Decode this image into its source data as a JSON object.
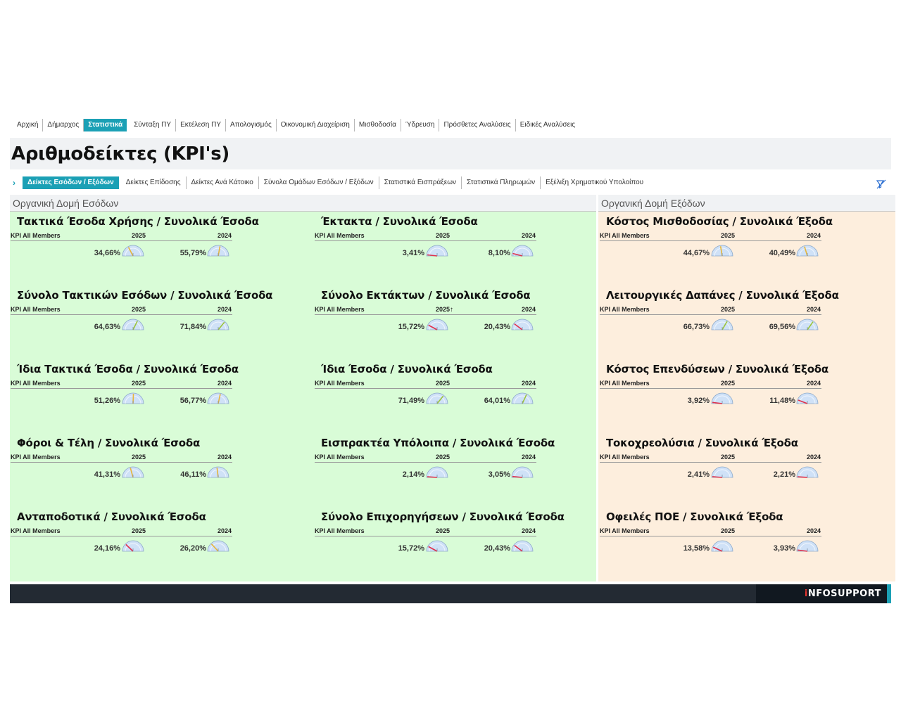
{
  "topnav": [
    {
      "label": "Αρχική",
      "active": false
    },
    {
      "label": "Δήμαρχος",
      "active": false
    },
    {
      "label": "Στατιστικά",
      "active": true
    },
    {
      "label": "Σύνταξη ΠΥ",
      "active": false
    },
    {
      "label": "Εκτέλεση ΠΥ",
      "active": false
    },
    {
      "label": "Απολογισμός",
      "active": false
    },
    {
      "label": "Οικονομική Διαχείριση",
      "active": false
    },
    {
      "label": "Μισθοδοσία",
      "active": false
    },
    {
      "label": "Ύδρευση",
      "active": false
    },
    {
      "label": "Πρόσθετες Αναλύσεις",
      "active": false
    },
    {
      "label": "Ειδικές Αναλύσεις",
      "active": false
    }
  ],
  "page_title": "Αριθμοδείκτες (KPI's)",
  "subnav": [
    {
      "label": "Δείκτες Εσόδων / Εξόδων",
      "active": true
    },
    {
      "label": "Δείκτες Επίδοσης",
      "active": false
    },
    {
      "label": "Δείκτες Ανά Κάτοικο",
      "active": false
    },
    {
      "label": "Σύνολα Ομάδων Εσόδων / Εξόδων",
      "active": false
    },
    {
      "label": "Στατιστικά Εισπράξεων",
      "active": false
    },
    {
      "label": "Στατιστικά Πληρωμών",
      "active": false
    },
    {
      "label": "Εξέλιξη Χρηματικού Υπολοίπου",
      "active": false
    }
  ],
  "icons": {
    "subnav_chevron": "chevron-right-icon",
    "clear_filter": "clear-filter-icon",
    "gauge": "gauge-icon"
  },
  "colors": {
    "accent": "#1ba0b5",
    "revenue_bg": "#d9fcd7",
    "expense_bg": "#fdeedd",
    "footer": "#232a33"
  },
  "revenue_section": {
    "title": "Οργανική Δομή Εσόδων"
  },
  "expense_section": {
    "title": "Οργανική Δομή Εξόδων"
  },
  "kpi_header": {
    "label": "KPI All Members",
    "year1": "2025",
    "year2": "2024"
  },
  "kpis": [
    {
      "title": "Τακτικά Έσοδα Χρήσης / Συνολικά Έσοδα",
      "v2025": "34,66%",
      "v2024": "55,79%",
      "f2025": 0.3466,
      "f2024": 0.5579
    },
    {
      "title": "Έκτακτα / Συνολικά Έσοδα",
      "v2025": "3,41%",
      "v2024": "8,10%",
      "f2025": 0.0341,
      "f2024": 0.081
    },
    {
      "title": "Κόστος Μισθοδοσίας / Συνολικά Έξοδα",
      "v2025": "44,67%",
      "v2024": "40,49%",
      "f2025": 0.4467,
      "f2024": 0.4049
    },
    {
      "title": "Σύνολο Τακτικών Εσόδων / Συνολικά Έσοδα",
      "v2025": "64,63%",
      "v2024": "71,84%",
      "f2025": 0.6463,
      "f2024": 0.7184
    },
    {
      "title": "Σύνολο Εκτάκτων / Συνολικά Έσοδα",
      "v2025": "15,72%",
      "v2024": "20,43%",
      "f2025": 0.1572,
      "f2024": 0.2043
    },
    {
      "title": "Λειτουργικές Δαπάνες / Συνολικά Έξοδα",
      "v2025": "66,73%",
      "v2024": "69,56%",
      "f2025": 0.6673,
      "f2024": 0.6956
    },
    {
      "title": "Ίδια Τακτικά Έσοδα / Συνολικά Έσοδα",
      "v2025": "51,26%",
      "v2024": "56,77%",
      "f2025": 0.5126,
      "f2024": 0.5677
    },
    {
      "title": "Ίδια Έσοδα / Συνολικά Έσοδα",
      "v2025": "71,49%",
      "v2024": "64,01%",
      "f2025": 0.7149,
      "f2024": 0.6401
    },
    {
      "title": "Κόστος Επενδύσεων / Συνολικά Έξοδα",
      "v2025": "3,92%",
      "v2024": "11,48%",
      "f2025": 0.0392,
      "f2024": 0.1148
    },
    {
      "title": "Φόροι & Τέλη / Συνολικά Έσοδα",
      "v2025": "41,31%",
      "v2024": "46,11%",
      "f2025": 0.4131,
      "f2024": 0.4611
    },
    {
      "title": "Εισπρακτέα Υπόλοιπα / Συνολικά Έσοδα",
      "v2025": "2,14%",
      "v2024": "3,05%",
      "f2025": 0.0214,
      "f2024": 0.0305
    },
    {
      "title": "Τοκοχρεολύσια / Συνολικά Έξοδα",
      "v2025": "2,41%",
      "v2024": "2,21%",
      "f2025": 0.0241,
      "f2024": 0.0221
    },
    {
      "title": "Ανταποδοτικά / Συνολικά Έσοδα",
      "v2025": "24,16%",
      "v2024": "26,20%",
      "f2025": 0.2416,
      "f2024": 0.262
    },
    {
      "title": "Σύνολο Επιχορηγήσεων / Συνολικά Έσοδα",
      "v2025": "15,72%",
      "v2024": "20,43%",
      "f2025": 0.1572,
      "f2024": 0.2043
    },
    {
      "title": "Οφειλές ΠΟΕ / Συνολικά Έξοδα",
      "v2025": "13,58%",
      "v2024": "3,93%",
      "f2025": 0.1358,
      "f2024": 0.0393
    }
  ],
  "sorted_year_marker": "↑",
  "footer": {
    "logo_i": "i",
    "logo_rest": "NFOSUPPORT"
  }
}
